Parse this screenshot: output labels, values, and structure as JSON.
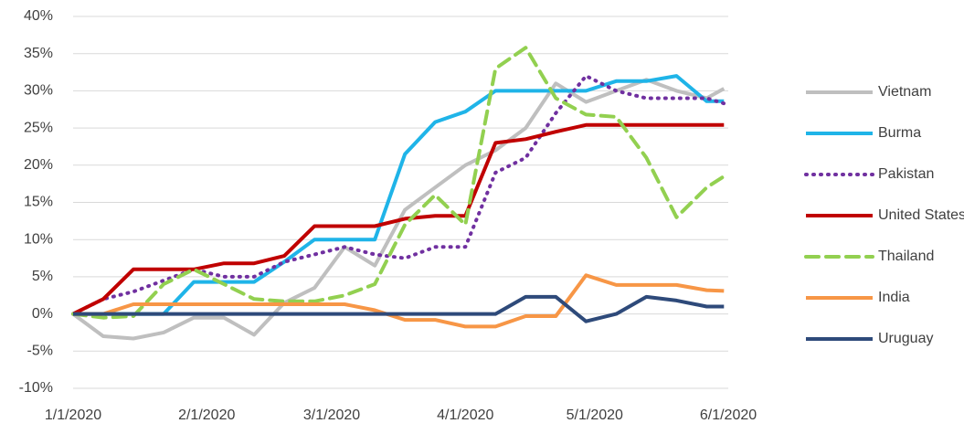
{
  "chart_data": {
    "type": "line",
    "x": [
      "1/1/2020",
      "1/8/2020",
      "1/15/2020",
      "1/22/2020",
      "1/29/2020",
      "2/5/2020",
      "2/12/2020",
      "2/19/2020",
      "2/26/2020",
      "3/4/2020",
      "3/11/2020",
      "3/18/2020",
      "3/25/2020",
      "4/1/2020",
      "4/8/2020",
      "4/15/2020",
      "4/22/2020",
      "4/29/2020",
      "5/6/2020",
      "5/13/2020",
      "5/20/2020",
      "5/27/2020",
      "5/31/2020"
    ],
    "xlim": [
      "1/1/2020",
      "6/1/2020"
    ],
    "xticks": [
      "1/1/2020",
      "2/1/2020",
      "3/1/2020",
      "4/1/2020",
      "5/1/2020",
      "6/1/2020"
    ],
    "ylim": [
      -10,
      40
    ],
    "yticks": [
      {
        "value": -10,
        "label": "-10%"
      },
      {
        "value": -5,
        "label": "-5%"
      },
      {
        "value": 0,
        "label": "0%"
      },
      {
        "value": 5,
        "label": "5%"
      },
      {
        "value": 10,
        "label": "10%"
      },
      {
        "value": 15,
        "label": "15%"
      },
      {
        "value": 20,
        "label": "20%"
      },
      {
        "value": 25,
        "label": "25%"
      },
      {
        "value": 30,
        "label": "30%"
      },
      {
        "value": 35,
        "label": "35%"
      },
      {
        "value": 40,
        "label": "40%"
      }
    ],
    "grid": true,
    "legend": "right",
    "series": [
      {
        "name": "Vietnam",
        "color": "#bfbfbf",
        "dash": "solid",
        "values": [
          0,
          -3,
          -3.3,
          -2.5,
          -0.5,
          -0.5,
          -2.8,
          1.5,
          3.5,
          9,
          6.5,
          14,
          17,
          20,
          22,
          25,
          31,
          28.5,
          30,
          31.5,
          30,
          29,
          30.3
        ]
      },
      {
        "name": "Burma",
        "color": "#1fb4e8",
        "dash": "solid",
        "values": [
          0,
          0,
          0,
          0,
          4.3,
          4.3,
          4.3,
          7,
          10,
          10,
          10,
          21.5,
          25.8,
          27.2,
          30,
          30,
          30,
          30,
          31.3,
          31.3,
          32,
          28.6,
          28.6
        ]
      },
      {
        "name": "Pakistan",
        "color": "#7030a0",
        "dash": "dotted",
        "values": [
          0,
          2,
          3,
          4.5,
          6,
          5,
          5,
          7,
          8,
          9,
          8,
          7.5,
          9,
          9,
          19,
          21,
          27,
          32,
          30,
          29,
          29,
          29,
          28.3
        ]
      },
      {
        "name": "United States",
        "color": "#c00000",
        "dash": "solid",
        "values": [
          0,
          2,
          6,
          6,
          6,
          6.8,
          6.8,
          7.8,
          11.8,
          11.8,
          11.8,
          12.8,
          13.2,
          13.2,
          23,
          23.5,
          24.5,
          25.4,
          25.4,
          25.4,
          25.4,
          25.4,
          25.4
        ]
      },
      {
        "name": "Thailand",
        "color": "#92d050",
        "dash": "dashed",
        "values": [
          0,
          -0.5,
          -0.3,
          4,
          6,
          4,
          2,
          1.7,
          1.7,
          2.5,
          4,
          12,
          16,
          12,
          33,
          35.8,
          29,
          26.8,
          26.5,
          21,
          13,
          17,
          18.5
        ]
      },
      {
        "name": "India",
        "color": "#f79646",
        "dash": "solid",
        "values": [
          0,
          0,
          1.3,
          1.3,
          1.3,
          1.3,
          1.3,
          1.3,
          1.3,
          1.3,
          0.5,
          -0.8,
          -0.8,
          -1.7,
          -1.7,
          -0.3,
          -0.3,
          5.2,
          3.9,
          3.9,
          3.9,
          3.2,
          3.1
        ]
      },
      {
        "name": "Uruguay",
        "color": "#2e4a7a",
        "dash": "solid",
        "values": [
          0,
          0,
          0,
          0,
          0,
          0,
          0,
          0,
          0,
          0,
          0,
          0,
          0,
          0,
          0,
          2.3,
          2.3,
          -1,
          0,
          2.3,
          1.8,
          1,
          1
        ]
      }
    ]
  }
}
